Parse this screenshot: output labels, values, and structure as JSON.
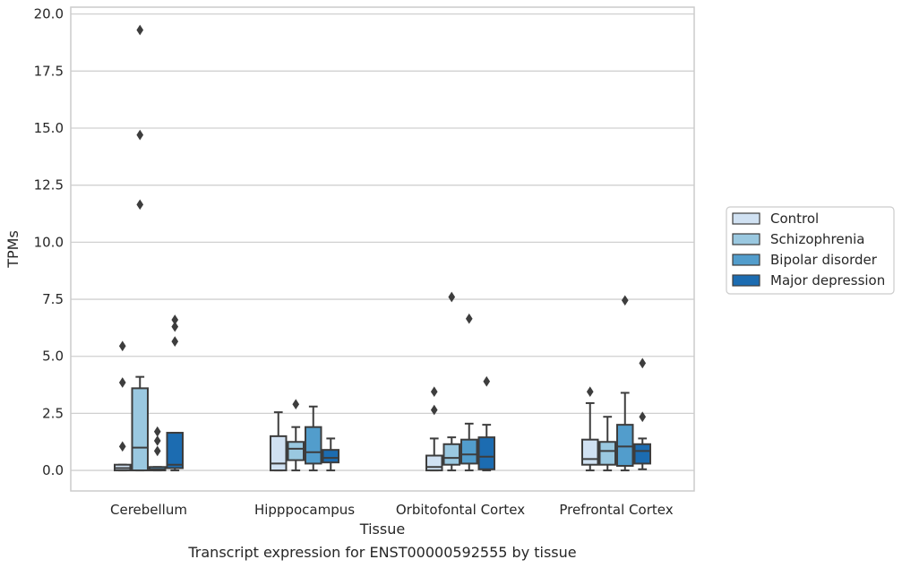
{
  "chart_data": {
    "type": "boxplot",
    "title": "",
    "caption": "Transcript expression for ENST00000592555 by tissue",
    "xlabel": "Tissue",
    "ylabel": "TPMs",
    "ylim": [
      -0.9,
      20.3
    ],
    "yticks": [
      "0.0",
      "2.5",
      "5.0",
      "7.5",
      "10.0",
      "12.5",
      "15.0",
      "17.5",
      "20.0"
    ],
    "ytick_values": [
      0,
      2.5,
      5,
      7.5,
      10,
      12.5,
      15,
      17.5,
      20
    ],
    "grid": true,
    "legend_position": "right",
    "categories": [
      "Cerebellum",
      "Hipppocampus",
      "Orbitofontal Cortex",
      "Prefrontal Cortex"
    ],
    "series": [
      {
        "name": "Control",
        "color": "#d0e1f2",
        "boxes": [
          {
            "whislo": 0.0,
            "q1": 0.0,
            "med": 0.1,
            "q3": 0.25,
            "whishi": 0.25,
            "fliers": [
              1.05,
              3.85,
              5.45
            ]
          },
          {
            "whislo": 0.0,
            "q1": 0.0,
            "med": 0.3,
            "q3": 1.5,
            "whishi": 2.55,
            "fliers": []
          },
          {
            "whislo": 0.0,
            "q1": 0.0,
            "med": 0.15,
            "q3": 0.65,
            "whishi": 1.4,
            "fliers": [
              2.65,
              3.45
            ]
          },
          {
            "whislo": 0.0,
            "q1": 0.25,
            "med": 0.5,
            "q3": 1.35,
            "whishi": 2.95,
            "fliers": [
              3.45
            ]
          }
        ]
      },
      {
        "name": "Schizophrenia",
        "color": "#9ac8e0",
        "boxes": [
          {
            "whislo": 0.0,
            "q1": 0.0,
            "med": 1.0,
            "q3": 3.6,
            "whishi": 4.1,
            "fliers": [
              11.65,
              14.7,
              19.3
            ]
          },
          {
            "whislo": 0.0,
            "q1": 0.45,
            "med": 0.95,
            "q3": 1.25,
            "whishi": 1.9,
            "fliers": [
              2.9
            ]
          },
          {
            "whislo": 0.0,
            "q1": 0.25,
            "med": 0.55,
            "q3": 1.15,
            "whishi": 1.45,
            "fliers": [
              7.6
            ]
          },
          {
            "whislo": 0.0,
            "q1": 0.25,
            "med": 0.85,
            "q3": 1.25,
            "whishi": 2.35,
            "fliers": []
          }
        ]
      },
      {
        "name": "Bipolar disorder",
        "color": "#529dcc",
        "boxes": [
          {
            "whislo": 0.0,
            "q1": 0.0,
            "med": 0.05,
            "q3": 0.15,
            "whishi": 0.15,
            "fliers": [
              0.85,
              1.3,
              1.7
            ]
          },
          {
            "whislo": 0.0,
            "q1": 0.3,
            "med": 0.8,
            "q3": 1.9,
            "whishi": 2.8,
            "fliers": []
          },
          {
            "whislo": 0.0,
            "q1": 0.3,
            "med": 0.7,
            "q3": 1.35,
            "whishi": 2.05,
            "fliers": [
              6.65
            ]
          },
          {
            "whislo": 0.0,
            "q1": 0.2,
            "med": 1.05,
            "q3": 2.0,
            "whishi": 3.4,
            "fliers": [
              7.45
            ]
          }
        ]
      },
      {
        "name": "Major depression",
        "color": "#1c6cb1",
        "boxes": [
          {
            "whislo": 0.0,
            "q1": 0.1,
            "med": 0.25,
            "q3": 1.65,
            "whishi": 1.65,
            "fliers": [
              5.65,
              6.3,
              6.6
            ]
          },
          {
            "whislo": 0.0,
            "q1": 0.35,
            "med": 0.55,
            "q3": 0.9,
            "whishi": 1.4,
            "fliers": []
          },
          {
            "whislo": 0.0,
            "q1": 0.05,
            "med": 0.6,
            "q3": 1.45,
            "whishi": 2.0,
            "fliers": [
              3.9
            ]
          },
          {
            "whislo": 0.05,
            "q1": 0.3,
            "med": 0.85,
            "q3": 1.15,
            "whishi": 1.4,
            "fliers": [
              2.35,
              4.7
            ]
          }
        ]
      }
    ]
  }
}
